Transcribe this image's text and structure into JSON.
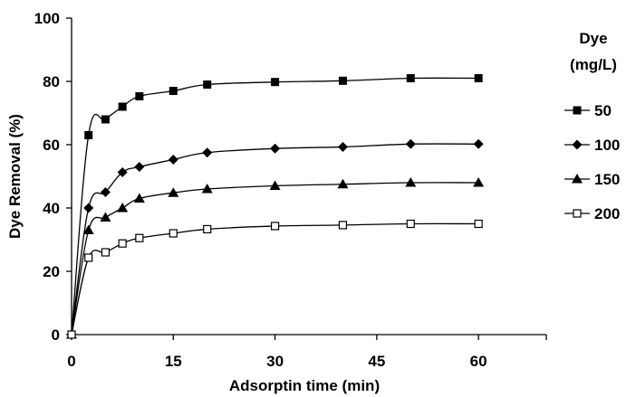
{
  "chart_data": {
    "type": "line",
    "xlabel": "Adsorptin time (min)",
    "ylabel": "Dye Removal (%)",
    "xlim": [
      0,
      70
    ],
    "ylim": [
      0,
      100
    ],
    "x_ticks": [
      0,
      15,
      30,
      45,
      60
    ],
    "y_ticks": [
      0,
      20,
      40,
      60,
      80,
      100
    ],
    "grid": false,
    "legend": {
      "title_line1": "Dye",
      "title_line2": "(mg/L)",
      "position": "right"
    },
    "x": [
      0,
      2.5,
      5,
      7.5,
      10,
      15,
      20,
      30,
      40,
      50,
      60
    ],
    "series": [
      {
        "name": "50",
        "marker": "square-filled",
        "color": "#000000",
        "values": [
          0,
          63,
          68,
          72,
          75.3,
          77,
          79,
          79.8,
          80.2,
          81,
          81
        ]
      },
      {
        "name": "100",
        "marker": "diamond-filled",
        "color": "#000000",
        "values": [
          0,
          40,
          45,
          51.3,
          53,
          55.3,
          57.5,
          58.8,
          59.3,
          60.2,
          60.2
        ]
      },
      {
        "name": "150",
        "marker": "triangle-filled",
        "color": "#000000",
        "values": [
          0,
          33,
          37,
          40,
          43,
          44.8,
          46,
          47,
          47.5,
          48,
          48
        ]
      },
      {
        "name": "200",
        "marker": "square-open",
        "color": "#000000",
        "values": [
          0,
          24.3,
          26,
          28.8,
          30.5,
          32,
          33.3,
          34.3,
          34.6,
          35,
          35
        ]
      }
    ]
  }
}
